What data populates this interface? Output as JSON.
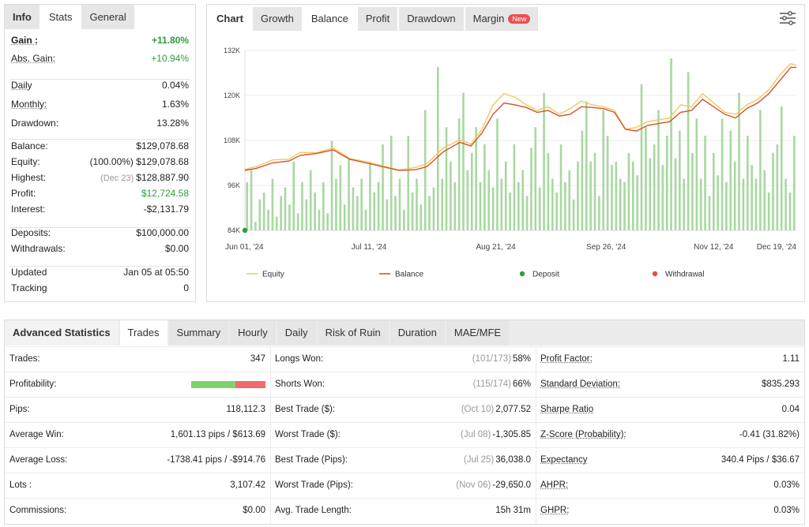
{
  "stats_panel": {
    "tabs": [
      {
        "label": "Info",
        "active": false
      },
      {
        "label": "Stats",
        "active": true
      },
      {
        "label": "General",
        "active": false
      }
    ],
    "rows": [
      {
        "label": "Gain :",
        "value": "+11.80%",
        "style": "green-bold",
        "label_underline": true
      },
      {
        "label": "Abs. Gain:",
        "value": "+10.94%",
        "style": "green",
        "label_underline": true
      },
      {
        "label": "Daily",
        "value": "0.04%",
        "label_underline": true
      },
      {
        "label": "Monthly:",
        "value": "1.63%",
        "label_underline": true
      },
      {
        "label": "Drawdown:",
        "value": "13.28%"
      },
      {
        "label": "Balance:",
        "value": "$129,078.68"
      },
      {
        "label": "Equity:",
        "value": "(100.00%) $129,078.68"
      },
      {
        "label": "Highest:",
        "note": "(Dec 23)",
        "value": "$128,887.90"
      },
      {
        "label": "Profit:",
        "value": "$12,724.58",
        "style": "green"
      },
      {
        "label": "Interest:",
        "value": "-$2,131.79"
      },
      {
        "label": "Deposits:",
        "value": "$100,000.00"
      },
      {
        "label": "Withdrawals:",
        "value": "$0.00"
      },
      {
        "label": "Updated",
        "value": "Jan 05 at 05:50"
      },
      {
        "label": "Tracking",
        "value": "0"
      }
    ]
  },
  "chart_panel": {
    "tabs": [
      {
        "label": "Chart",
        "active": false
      },
      {
        "label": "Growth",
        "active": false
      },
      {
        "label": "Balance",
        "active": true
      },
      {
        "label": "Profit",
        "active": false
      },
      {
        "label": "Drawdown",
        "active": false
      },
      {
        "label": "Margin",
        "active": false,
        "badge": "New"
      }
    ],
    "settings_icon": "sliders-icon"
  },
  "chart_data": {
    "type": "line",
    "y_ticks": [
      "84K",
      "96K",
      "108K",
      "120K",
      "132K"
    ],
    "ylim": [
      84000,
      132000
    ],
    "x_ticks": [
      "Jun 01, '24",
      "Jul 11, '24",
      "Aug 21, '24",
      "Sep 26, '24",
      "Nov 12, '24",
      "Dec 19, '24"
    ],
    "colors": {
      "equity": "#f6c65c",
      "balance": "#d2552b",
      "bars": "#a8d8a0",
      "deposit": "#2e9d3b",
      "withdrawal": "#e34b4b"
    },
    "legend": [
      {
        "label": "Equity",
        "kind": "line",
        "color": "#f6c65c"
      },
      {
        "label": "Balance",
        "kind": "line",
        "color": "#d2552b"
      },
      {
        "label": "Deposit",
        "kind": "dot",
        "color": "#2e9d3b"
      },
      {
        "label": "Withdrawal",
        "kind": "dot",
        "color": "#e34b4b"
      }
    ],
    "series": [
      {
        "name": "Balance",
        "x": [
          0,
          0.02,
          0.05,
          0.08,
          0.1,
          0.13,
          0.16,
          0.19,
          0.22,
          0.25,
          0.28,
          0.31,
          0.33,
          0.36,
          0.39,
          0.41,
          0.43,
          0.45,
          0.47,
          0.49,
          0.51,
          0.53,
          0.55,
          0.57,
          0.59,
          0.61,
          0.63,
          0.65,
          0.67,
          0.69,
          0.71,
          0.73,
          0.75,
          0.77,
          0.79,
          0.81,
          0.83,
          0.85,
          0.87,
          0.89,
          0.91,
          0.93,
          0.95,
          0.97,
          0.99,
          1.0
        ],
        "values": [
          100000,
          100500,
          102000,
          102500,
          104000,
          104500,
          105500,
          103000,
          102000,
          101000,
          100000,
          100200,
          101000,
          105000,
          107500,
          106500,
          110000,
          115000,
          118000,
          117500,
          116800,
          115500,
          116000,
          114500,
          115000,
          117000,
          116800,
          116500,
          115500,
          111000,
          110500,
          112000,
          112500,
          113000,
          115500,
          116000,
          119000,
          117000,
          115000,
          114000,
          116500,
          118000,
          120500,
          124000,
          127500,
          127500
        ]
      },
      {
        "name": "Equity",
        "x": [
          0,
          0.02,
          0.05,
          0.08,
          0.1,
          0.13,
          0.16,
          0.19,
          0.22,
          0.25,
          0.28,
          0.31,
          0.33,
          0.36,
          0.39,
          0.41,
          0.43,
          0.45,
          0.47,
          0.49,
          0.51,
          0.53,
          0.55,
          0.57,
          0.59,
          0.61,
          0.63,
          0.65,
          0.67,
          0.69,
          0.71,
          0.73,
          0.75,
          0.77,
          0.79,
          0.81,
          0.83,
          0.85,
          0.87,
          0.89,
          0.91,
          0.93,
          0.95,
          0.97,
          0.99,
          1.0
        ],
        "values": [
          100300,
          101000,
          102800,
          103000,
          104800,
          104700,
          106000,
          103200,
          102300,
          101200,
          100100,
          100800,
          101800,
          106000,
          108200,
          107000,
          111000,
          117500,
          120500,
          119500,
          117500,
          116000,
          117000,
          115000,
          116500,
          118500,
          117500,
          117000,
          116000,
          111000,
          111500,
          113000,
          113500,
          114000,
          117500,
          117000,
          120500,
          118000,
          115500,
          115000,
          117500,
          119000,
          121500,
          125500,
          128500,
          128000
        ]
      }
    ],
    "bars": [
      0.28,
      0.35,
      0.05,
      0.18,
      0.22,
      0.12,
      0.3,
      0.08,
      0.2,
      0.25,
      0.15,
      0.4,
      0.1,
      0.28,
      0.18,
      0.35,
      0.22,
      0.12,
      0.28,
      0.1,
      0.52,
      0.3,
      0.38,
      0.15,
      0.42,
      0.25,
      0.2,
      0.3,
      0.12,
      0.4,
      0.22,
      0.28,
      0.5,
      0.18,
      0.55,
      0.2,
      0.3,
      0.12,
      0.55,
      0.22,
      0.3,
      0.15,
      0.7,
      0.2,
      0.25,
      0.95,
      0.3,
      0.6,
      0.4,
      0.28,
      0.65,
      0.8,
      0.35,
      0.45,
      0.6,
      0.28,
      0.5,
      0.35,
      0.25,
      0.65,
      0.3,
      0.4,
      0.22,
      0.5,
      0.28,
      0.35,
      0.2,
      0.48,
      0.6,
      0.25,
      0.8,
      0.45,
      0.3,
      0.22,
      0.5,
      0.28,
      0.35,
      0.18,
      0.4,
      0.58,
      0.75,
      0.4,
      0.45,
      0.2,
      0.7,
      0.55,
      0.38,
      0.4,
      0.3,
      0.28,
      0.45,
      0.4,
      0.32,
      0.85,
      0.6,
      0.42,
      0.5,
      0.7,
      0.38,
      0.55,
      1.0,
      0.42,
      0.58,
      0.3,
      0.92,
      0.45,
      0.65,
      0.3,
      0.55,
      0.2,
      0.45,
      0.32,
      0.65,
      0.28,
      0.58,
      0.4,
      0.8,
      0.3,
      0.55,
      0.38,
      0.3,
      0.7,
      0.35,
      0.22,
      0.45,
      0.5,
      0.72,
      0.3,
      0.22,
      0.55
    ],
    "deposit_marker_x": 0.0
  },
  "adv_panel": {
    "tabs": [
      {
        "label": "Advanced Statistics",
        "lead": true
      },
      {
        "label": "Trades",
        "active": true
      },
      {
        "label": "Summary"
      },
      {
        "label": "Hourly"
      },
      {
        "label": "Daily"
      },
      {
        "label": "Risk of Ruin"
      },
      {
        "label": "Duration"
      },
      {
        "label": "MAE/MFE"
      }
    ],
    "col1": [
      {
        "label": "Trades:",
        "value": "347"
      },
      {
        "label": "Profitability:",
        "value": "",
        "bar": {
          "win_fraction": 0.6
        }
      },
      {
        "label": "Pips:",
        "value": "118,112.3"
      },
      {
        "label": "Average Win:",
        "value": "1,601.13 pips / $613.69"
      },
      {
        "label": "Average Loss:",
        "value": "-1738.41 pips / -$914.76"
      },
      {
        "label": "Lots :",
        "value": "3,107.42"
      },
      {
        "label": "Commissions:",
        "value": "$0.00"
      }
    ],
    "col2": [
      {
        "label": "Longs Won:",
        "note": "(101/173)",
        "value": "58%"
      },
      {
        "label": "Shorts Won:",
        "note": "(115/174)",
        "value": "66%"
      },
      {
        "label": "Best Trade ($):",
        "note": "(Oct 10)",
        "value": "2,077.52"
      },
      {
        "label": "Worst Trade ($):",
        "note": "(Jul 08)",
        "value": "-1,305.85"
      },
      {
        "label": "Best Trade (Pips):",
        "note": "(Jul 25)",
        "value": "36,038.0"
      },
      {
        "label": "Worst Trade (Pips):",
        "note": "(Nov 06)",
        "value": "-29,650.0"
      },
      {
        "label": "Avg. Trade Length:",
        "note": "",
        "value": "15h 31m"
      }
    ],
    "col3": [
      {
        "label": "Profit Factor:",
        "value": "1.11"
      },
      {
        "label": "Standard Deviation:",
        "value": "$835.293"
      },
      {
        "label": "Sharpe Ratio",
        "value": "0.04"
      },
      {
        "label": "Z-Score (Probability):",
        "value": "-0.41 (31.82%)"
      },
      {
        "label": "Expectancy",
        "value": "340.4 Pips / $36.67"
      },
      {
        "label": "AHPR:",
        "value": "0.03%"
      },
      {
        "label": "GHPR:",
        "value": "0.03%"
      }
    ]
  }
}
